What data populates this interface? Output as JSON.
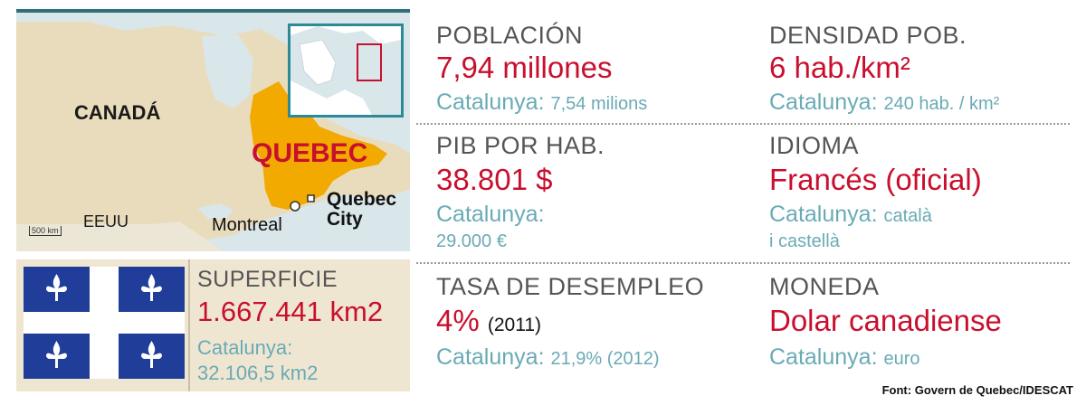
{
  "map": {
    "labels": {
      "canada": "CANADÁ",
      "quebec": "QUEBEC",
      "eeuu": "EEUU",
      "montreal": "Montreal",
      "quebec_city": "Quebec City"
    },
    "scale": "500 km"
  },
  "superficie": {
    "title": "SUPERFICIE",
    "value": "1.667.441 km2",
    "compare_label": "Catalunya:",
    "compare_value": "32.106,5 km2"
  },
  "poblacion": {
    "title": "POBLACIÓN",
    "value": "7,94 millones",
    "compare_label": "Catalunya:",
    "compare_value": "7,54 milions"
  },
  "densidad": {
    "title": "DENSIDAD POB.",
    "value": "6 hab./km²",
    "compare_label": "Catalunya:",
    "compare_value": "240 hab. / km²"
  },
  "pib": {
    "title": "PIB POR HAB.",
    "value": "38.801 $",
    "compare_label": "Catalunya:",
    "compare_value": "29.000 €"
  },
  "idioma": {
    "title": "IDIOMA",
    "value": "Francés (oficial)",
    "compare_label": "Catalunya:",
    "compare_value_line1": "català",
    "compare_value_line2": "i castellà"
  },
  "desempleo": {
    "title": "TASA DE DESEMPLEO",
    "value": "4%",
    "value_year": "(2011)",
    "compare_label": "Catalunya:",
    "compare_value": "21,9% (2012)"
  },
  "moneda": {
    "title": "MONEDA",
    "value": "Dolar canadiense",
    "compare_label": "Catalunya:",
    "compare_value": "euro"
  },
  "source": "Font: Govern de Quebec/IDESCAT",
  "colors": {
    "accent_red": "#c8102e",
    "compare_teal": "#6aaab6",
    "quebec_fill": "#f2a900",
    "flag_blue": "#1f3d99"
  }
}
